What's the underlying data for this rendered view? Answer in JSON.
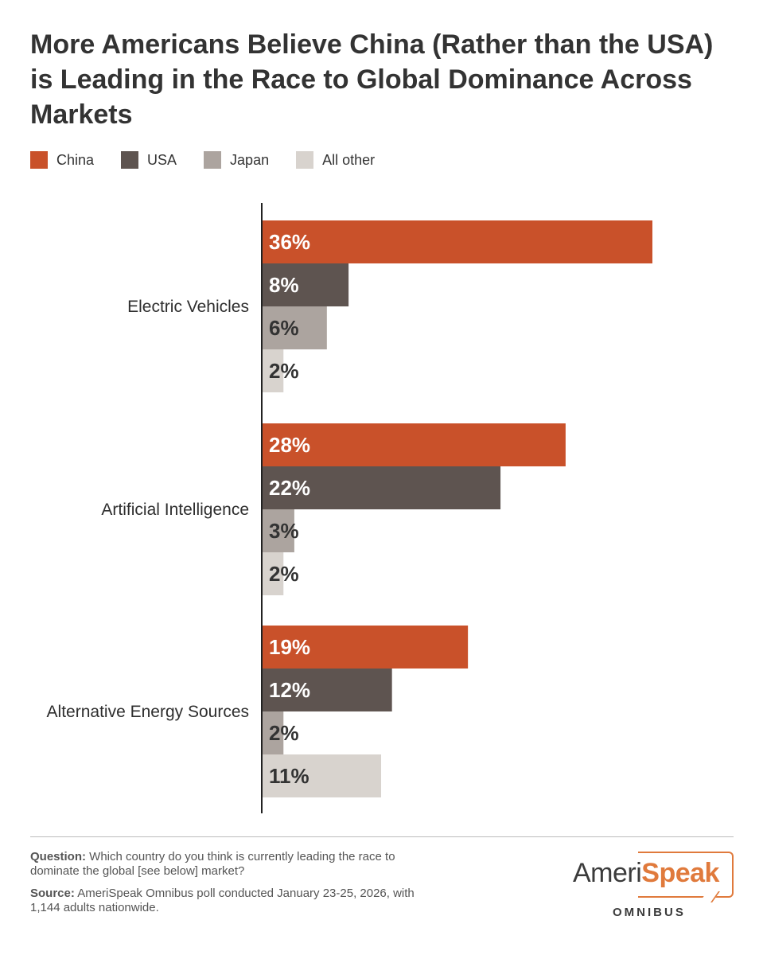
{
  "title": "More Americans Believe China (Rather than the USA) is Leading in the Race to Global Dominance Across Markets",
  "legend": [
    {
      "label": "China",
      "color": "#c9512a"
    },
    {
      "label": "USA",
      "color": "#5e5450"
    },
    {
      "label": "Japan",
      "color": "#aca49f"
    },
    {
      "label": "All other",
      "color": "#d8d3ce"
    }
  ],
  "chart_data": {
    "type": "bar",
    "orientation": "horizontal",
    "categories": [
      "Electric Vehicles",
      "Artificial Intelligence",
      "Alternative Energy Sources"
    ],
    "series": [
      {
        "name": "China",
        "color": "#c9512a",
        "values": [
          36,
          28,
          19
        ],
        "labels": [
          "36%",
          "28%",
          "19%"
        ]
      },
      {
        "name": "USA",
        "color": "#5e5450",
        "values": [
          8,
          22,
          12
        ],
        "labels": [
          "8%",
          "22%",
          "12%"
        ]
      },
      {
        "name": "Japan",
        "color": "#aca49f",
        "values": [
          6,
          3,
          2
        ],
        "labels": [
          "6%",
          "3%",
          "2%"
        ]
      },
      {
        "name": "All other",
        "color": "#d8d3ce",
        "values": [
          2,
          2,
          11
        ],
        "labels": [
          "2%",
          "2%",
          "11%"
        ]
      }
    ],
    "xlim": [
      0,
      36
    ],
    "grid": false,
    "legend_position": "top-left"
  },
  "footer": {
    "question_label": "Question:",
    "question_text": "Which country do you think is currently leading the race to dominate the global [see below] market?",
    "source_label": "Source:",
    "source_text": "AmeriSpeak Omnibus poll conducted January 23-25, 2026, with 1,144 adults nationwide."
  },
  "logo": {
    "word_part1": "Ameri",
    "word_part2": "Speak",
    "subtitle": "OMNIBUS"
  }
}
